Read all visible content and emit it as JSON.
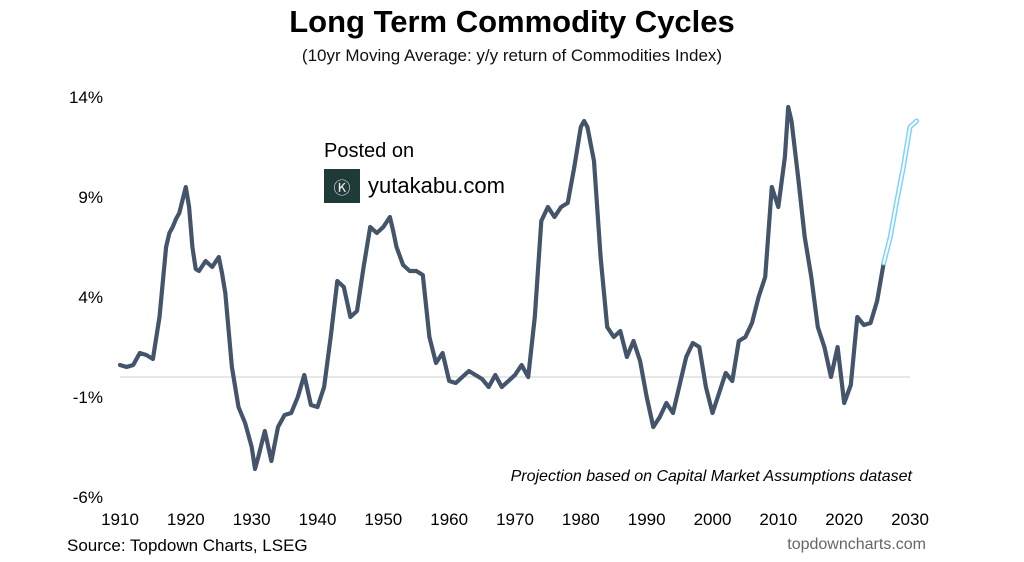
{
  "chart_data": {
    "type": "line",
    "title": "Long Term Commodity Cycles",
    "subtitle": "(10yr Moving Average: y/y return of Commodities Index)",
    "xlabel": "",
    "ylabel": "",
    "xlim": [
      1910,
      2030
    ],
    "ylim": [
      -6,
      14
    ],
    "x_ticks": [
      1910,
      1920,
      1930,
      1940,
      1950,
      1960,
      1970,
      1980,
      1990,
      2000,
      2010,
      2020,
      2030
    ],
    "x_tick_labels": [
      "1910",
      "1920",
      "1930",
      "1940",
      "1950",
      "1960",
      "1970",
      "1980",
      "1990",
      "2000",
      "2010",
      "2020",
      "2030"
    ],
    "y_ticks": [
      14,
      9,
      4,
      -1,
      -6
    ],
    "y_tick_labels": [
      "14%",
      "9%",
      "4%",
      "-1%",
      "-6%"
    ],
    "zero_line": 0,
    "annotation": "Projection based on Capital Market Assumptions dataset",
    "series": [
      {
        "name": "10yr Moving Average",
        "color": "#44546a",
        "x": [
          1910,
          1911,
          1912,
          1913,
          1914,
          1915,
          1916,
          1917,
          1917.5,
          1918,
          1918.5,
          1919,
          1920,
          1920.5,
          1921,
          1921.5,
          1922,
          1923,
          1924,
          1925,
          1925.5,
          1926,
          1927,
          1928,
          1929,
          1930,
          1930.5,
          1931,
          1932,
          1933,
          1934,
          1935,
          1936,
          1937,
          1938,
          1939,
          1940,
          1941,
          1942,
          1943,
          1944,
          1945,
          1946,
          1947,
          1948,
          1949,
          1950,
          1951,
          1951.5,
          1952,
          1953,
          1954,
          1955,
          1956,
          1957,
          1958,
          1959,
          1960,
          1961,
          1962,
          1963,
          1964,
          1965,
          1966,
          1967,
          1968,
          1969,
          1970,
          1971,
          1972,
          1973,
          1974,
          1975,
          1976,
          1977,
          1978,
          1979,
          1980,
          1980.5,
          1981,
          1982,
          1983,
          1984,
          1985,
          1986,
          1987,
          1988,
          1989,
          1990,
          1991,
          1992,
          1993,
          1994,
          1995,
          1996,
          1997,
          1998,
          1999,
          2000,
          2001,
          2002,
          2003,
          2004,
          2005,
          2006,
          2007,
          2008,
          2009,
          2010,
          2011,
          2011.5,
          2012,
          2013,
          2014,
          2015,
          2016,
          2017,
          2018,
          2019,
          2020,
          2021,
          2022,
          2023,
          2024,
          2025,
          2026
        ],
        "values": [
          0.6,
          0.5,
          0.6,
          1.2,
          1.1,
          0.9,
          3.0,
          6.5,
          7.2,
          7.5,
          7.9,
          8.2,
          9.5,
          8.5,
          6.5,
          5.4,
          5.3,
          5.8,
          5.5,
          6.0,
          5.2,
          4.2,
          0.5,
          -1.5,
          -2.3,
          -3.5,
          -4.6,
          -4.0,
          -2.7,
          -4.2,
          -2.5,
          -1.9,
          -1.8,
          -1.0,
          0.1,
          -1.4,
          -1.5,
          -0.5,
          2.0,
          4.8,
          4.5,
          3.0,
          3.3,
          5.5,
          7.5,
          7.2,
          7.5,
          8.0,
          7.3,
          6.5,
          5.6,
          5.3,
          5.3,
          5.1,
          2.0,
          0.7,
          1.2,
          -0.2,
          -0.3,
          0.0,
          0.3,
          0.1,
          -0.1,
          -0.5,
          0.1,
          -0.5,
          -0.2,
          0.1,
          0.6,
          0.0,
          3.0,
          7.8,
          8.5,
          8.0,
          8.5,
          8.7,
          10.5,
          12.5,
          12.8,
          12.5,
          10.8,
          6.0,
          2.5,
          2.0,
          2.3,
          1.0,
          1.8,
          0.8,
          -1.0,
          -2.5,
          -2.0,
          -1.3,
          -1.8,
          -0.4,
          1.0,
          1.7,
          1.5,
          -0.5,
          -1.8,
          -0.8,
          0.2,
          -0.2,
          1.8,
          2.0,
          2.7,
          4.0,
          5.0,
          9.5,
          8.5,
          11.0,
          13.5,
          12.8,
          10.0,
          7.0,
          5.0,
          2.5,
          1.5,
          0.0,
          1.5,
          -1.3,
          -0.4,
          3.0,
          2.6,
          2.7,
          3.8,
          5.7
        ]
      },
      {
        "name": "Projection",
        "color": "#7fd1ff",
        "x": [
          2026,
          2027,
          2028,
          2029,
          2030,
          2031
        ],
        "values": [
          5.7,
          7.0,
          8.8,
          10.5,
          12.5,
          12.8
        ]
      }
    ]
  },
  "watermark": {
    "posted": "Posted on",
    "logo_glyph": "Ⓚ",
    "site": "yutakabu.com"
  },
  "footer": {
    "source": "Source: Topdown Charts, LSEG",
    "credit": "topdowncharts.com"
  }
}
